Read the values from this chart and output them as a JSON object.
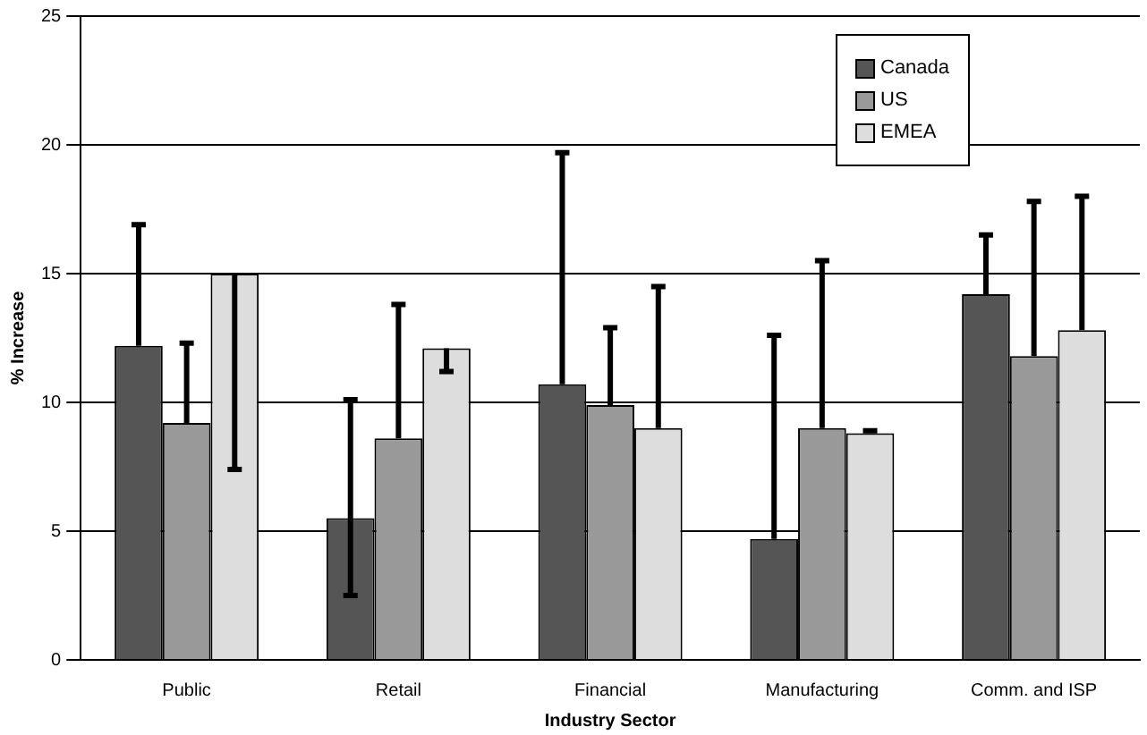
{
  "chart_data": {
    "type": "bar",
    "xlabel": "Industry Sector",
    "ylabel": "% Increase",
    "categories": [
      "Public",
      "Retail",
      "Financial",
      "Manufacturing",
      "Comm. and ISP"
    ],
    "series": [
      {
        "name": "Canada",
        "color": "#555555",
        "values": [
          12.2,
          5.5,
          10.7,
          4.7,
          14.2
        ],
        "errors": [
          [
            12.2,
            16.9
          ],
          [
            2.5,
            10.1
          ],
          [
            10.7,
            19.7
          ],
          [
            4.7,
            12.6
          ],
          [
            14.2,
            16.5
          ]
        ]
      },
      {
        "name": "US",
        "color": "#999999",
        "values": [
          9.2,
          8.6,
          9.9,
          9.0,
          11.8
        ],
        "errors": [
          [
            9.2,
            12.3
          ],
          [
            8.6,
            13.8
          ],
          [
            9.9,
            12.9
          ],
          [
            9.0,
            15.5
          ],
          [
            11.8,
            17.8
          ]
        ]
      },
      {
        "name": "EMEA",
        "color": "#dddddd",
        "values": [
          15.0,
          12.1,
          9.0,
          8.8,
          12.8
        ],
        "errors": [
          [
            7.4,
            15.0
          ],
          [
            11.2,
            12.1
          ],
          [
            9.0,
            14.5
          ],
          [
            8.8,
            8.9
          ],
          [
            12.8,
            18.0
          ]
        ]
      }
    ],
    "ylim": [
      0,
      25
    ],
    "yticks": [
      0,
      5,
      10,
      15,
      20,
      25
    ],
    "grid": "y",
    "legend": "top right"
  }
}
